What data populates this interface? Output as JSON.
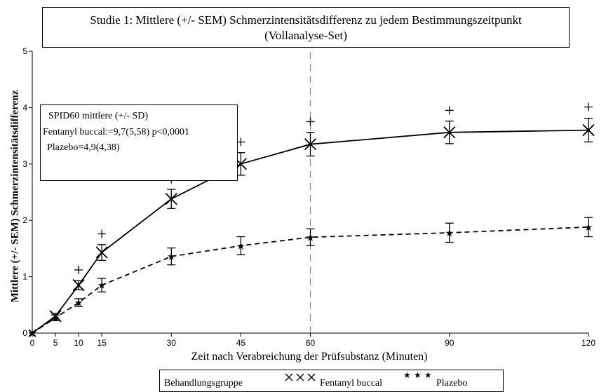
{
  "chart_data": {
    "type": "line",
    "title": "Studie 1: Mittlere (+/- SEM) Schmerzintensitätsdifferenz zu jedem Bestimmungszeitpunkt",
    "subtitle": "(Vollanalyse-Set)",
    "xlabel": "Zeit nach Verabreichung der Prüfsubstanz (Minuten)",
    "ylabel": "Mittlere (+/- SEM) Schmerzintensitätsdifferenz",
    "x": [
      0,
      5,
      10,
      15,
      30,
      45,
      60,
      90,
      120
    ],
    "x_ticks": [
      "0",
      "5",
      "10",
      "15",
      "30",
      "45",
      "60",
      "90",
      "120"
    ],
    "y_ticks": [
      "0",
      "1",
      "2",
      "3",
      "4",
      "5"
    ],
    "xlim": [
      0,
      120
    ],
    "ylim": [
      0,
      5
    ],
    "reference_line_x": 60,
    "grid": false,
    "series": [
      {
        "name": "Fentanyl buccal",
        "marker": "x",
        "line": "solid",
        "values": [
          0,
          0.3,
          0.85,
          1.43,
          2.38,
          3.0,
          3.35,
          3.56,
          3.6
        ],
        "sem": [
          0,
          0.05,
          0.08,
          0.14,
          0.17,
          0.2,
          0.21,
          0.2,
          0.21
        ]
      },
      {
        "name": "Plazebo",
        "marker": "star",
        "line": "dashed",
        "values": [
          0,
          0.27,
          0.54,
          0.85,
          1.36,
          1.55,
          1.7,
          1.78,
          1.88
        ],
        "sem": [
          0,
          0.05,
          0.07,
          0.12,
          0.15,
          0.16,
          0.15,
          0.17,
          0.17
        ]
      }
    ],
    "significance_markers": [
      {
        "x": 10,
        "y": 1.12
      },
      {
        "x": 15,
        "y": 1.76
      },
      {
        "x": 30,
        "y": 2.73
      },
      {
        "x": 45,
        "y": 3.39
      },
      {
        "x": 60,
        "y": 3.75
      },
      {
        "x": 90,
        "y": 3.95
      },
      {
        "x": 120,
        "y": 4.01
      }
    ],
    "significance_symbol": "+",
    "annotation": {
      "title": "SPID60 mittlere (+/- SD)",
      "line1": "Fentanyl buccal:=9,7(5,58) p<0,0001",
      "line2": "Plazebo=4,9(4,38)"
    },
    "legend": {
      "placement": "bottom",
      "heading": "Behandlungsgruppe",
      "entries": [
        "Fentanyl buccal",
        "Plazebo"
      ]
    }
  }
}
